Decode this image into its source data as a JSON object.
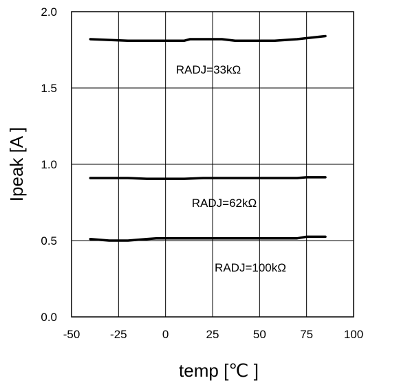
{
  "chart_data": {
    "type": "line",
    "title": "",
    "xlabel": "temp [℃ ]",
    "ylabel": "Ipeak [A ]",
    "xlim": [
      -50,
      100
    ],
    "ylim": [
      0.0,
      2.0
    ],
    "x_ticks": [
      "-50",
      "-25",
      "0",
      "25",
      "50",
      "75",
      "100"
    ],
    "y_ticks": [
      "0.0",
      "0.5",
      "1.0",
      "1.5",
      "2.0"
    ],
    "grid": true,
    "series": [
      {
        "name": "RADJ=33kΩ",
        "x": [
          -40,
          -30,
          -20,
          -10,
          0,
          10,
          13,
          20,
          30,
          37,
          45,
          50,
          58,
          70,
          85
        ],
        "y": [
          1.82,
          1.815,
          1.81,
          1.81,
          1.81,
          1.81,
          1.82,
          1.82,
          1.82,
          1.81,
          1.81,
          1.81,
          1.81,
          1.82,
          1.84
        ]
      },
      {
        "name": "RADJ=62kΩ",
        "x": [
          -40,
          -30,
          -20,
          -10,
          0,
          10,
          20,
          30,
          40,
          50,
          60,
          70,
          75,
          85
        ],
        "y": [
          0.91,
          0.91,
          0.91,
          0.905,
          0.905,
          0.905,
          0.91,
          0.91,
          0.91,
          0.91,
          0.91,
          0.91,
          0.915,
          0.915
        ]
      },
      {
        "name": "RADJ=100kΩ",
        "x": [
          -40,
          -30,
          -20,
          -10,
          -5,
          0,
          10,
          20,
          30,
          40,
          50,
          60,
          70,
          75,
          85
        ],
        "y": [
          0.51,
          0.5,
          0.5,
          0.51,
          0.515,
          0.515,
          0.515,
          0.515,
          0.515,
          0.515,
          0.515,
          0.515,
          0.515,
          0.525,
          0.525
        ]
      }
    ]
  }
}
